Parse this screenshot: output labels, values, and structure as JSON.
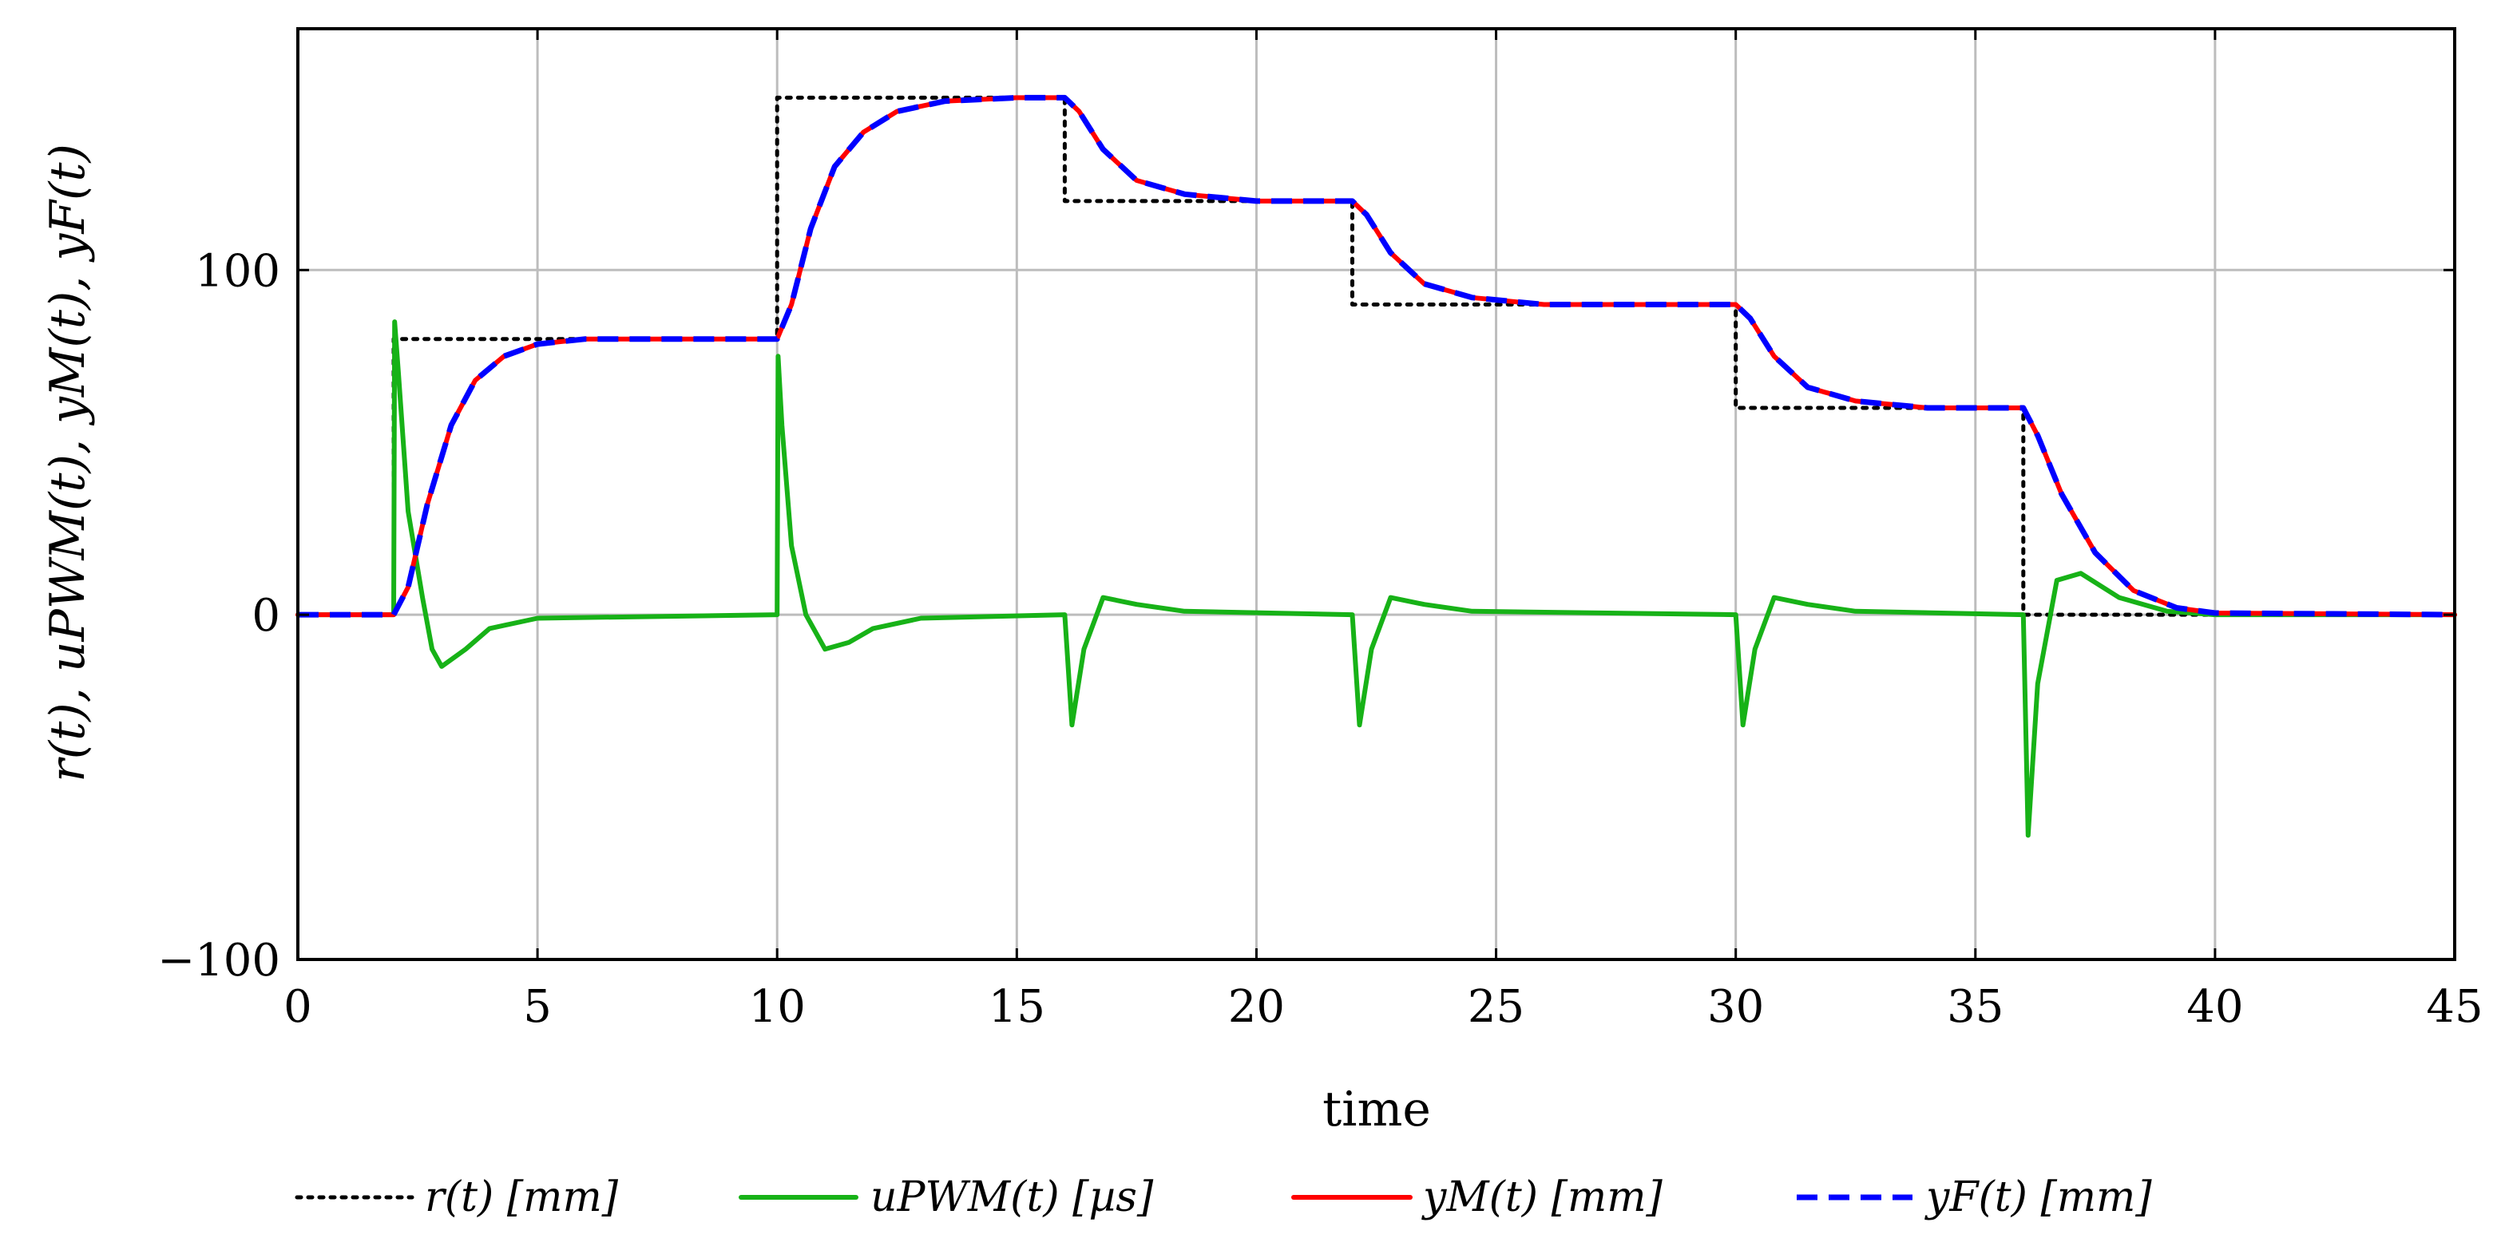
{
  "chart_data": {
    "type": "line",
    "title": "",
    "xlabel": "time",
    "ylabel": "r(t), uPWM(t), yM(t), yF(t)",
    "xlim": [
      0,
      45
    ],
    "ylim": [
      -100,
      170
    ],
    "xticks": [
      0,
      5,
      10,
      15,
      20,
      25,
      30,
      35,
      40,
      45
    ],
    "xtick_labels": [
      "0",
      "5",
      "10",
      "15",
      "20",
      "25",
      "30",
      "35",
      "40",
      "45"
    ],
    "yticks": [
      -100,
      0,
      100
    ],
    "ytick_labels": [
      "−100",
      "0",
      "100"
    ],
    "grid": true,
    "legend_position": "bottom",
    "series": [
      {
        "name": "r(t) [mm]",
        "color": "#000000",
        "style": "dotted",
        "x": [
          0,
          2,
          2,
          10,
          10,
          16,
          16,
          22,
          22,
          30,
          30,
          36,
          36,
          45
        ],
        "y": [
          0,
          0,
          80,
          80,
          150,
          150,
          120,
          120,
          90,
          90,
          60,
          60,
          0,
          0
        ]
      },
      {
        "name": "uPWM(t) [µs]",
        "color": "#17b217",
        "style": "solid",
        "x": [
          0,
          2,
          2.02,
          2.1,
          2.3,
          2.6,
          2.8,
          3.0,
          3.5,
          4.0,
          5.0,
          10,
          10.02,
          10.1,
          10.3,
          10.6,
          11.0,
          11.5,
          12.0,
          13.0,
          16,
          16.15,
          16.4,
          16.8,
          17.5,
          18.5,
          22,
          22.15,
          22.4,
          22.8,
          23.5,
          24.5,
          30,
          30.15,
          30.4,
          30.8,
          31.5,
          32.5,
          36,
          36.1,
          36.3,
          36.7,
          37.2,
          38.0,
          39.0,
          40.0,
          45
        ],
        "y": [
          0,
          0,
          85,
          70,
          30,
          5,
          -10,
          -15,
          -10,
          -4,
          -1,
          0,
          75,
          55,
          20,
          0,
          -10,
          -8,
          -4,
          -1,
          0,
          -32,
          -10,
          5,
          3,
          1,
          0,
          -32,
          -10,
          5,
          3,
          1,
          0,
          -32,
          -10,
          5,
          3,
          1,
          0,
          -64,
          -20,
          10,
          12,
          5,
          1,
          0,
          0
        ]
      },
      {
        "name": "yM(t) [mm]",
        "color": "#ff0000",
        "style": "solid",
        "x": [
          0,
          2,
          2.3,
          2.7,
          3.2,
          3.7,
          4.3,
          5.0,
          6.0,
          10,
          10.3,
          10.7,
          11.2,
          11.8,
          12.5,
          13.5,
          15,
          16,
          16.3,
          16.8,
          17.5,
          18.5,
          20,
          22,
          22.3,
          22.8,
          23.5,
          24.5,
          26,
          30,
          30.3,
          30.8,
          31.5,
          32.5,
          34,
          36,
          36.3,
          36.8,
          37.5,
          38.3,
          39.2,
          40.0,
          45
        ],
        "y": [
          0,
          0,
          8,
          32,
          55,
          68,
          75,
          78.5,
          80,
          80,
          90,
          112,
          130,
          140,
          146,
          149,
          150,
          150,
          146,
          135,
          126,
          122,
          120,
          120,
          116,
          105,
          96,
          92,
          90,
          90,
          86,
          75,
          66,
          62,
          60,
          60,
          52,
          35,
          18,
          7,
          2,
          0.5,
          0
        ]
      },
      {
        "name": "yF(t) [mm]",
        "color": "#0000ff",
        "style": "dashed",
        "x": [
          0,
          2,
          2.3,
          2.7,
          3.2,
          3.7,
          4.3,
          5.0,
          6.0,
          10,
          10.3,
          10.7,
          11.2,
          11.8,
          12.5,
          13.5,
          15,
          16,
          16.3,
          16.8,
          17.5,
          18.5,
          20,
          22,
          22.3,
          22.8,
          23.5,
          24.5,
          26,
          30,
          30.3,
          30.8,
          31.5,
          32.5,
          34,
          36,
          36.3,
          36.8,
          37.5,
          38.3,
          39.2,
          40.0,
          45
        ],
        "y": [
          0,
          0,
          8,
          32,
          55,
          68,
          75,
          78.5,
          80,
          80,
          90,
          112,
          130,
          140,
          146,
          149,
          150,
          150,
          146,
          135,
          126,
          122,
          120,
          120,
          116,
          105,
          96,
          92,
          90,
          90,
          86,
          75,
          66,
          62,
          60,
          60,
          52,
          35,
          18,
          7,
          2,
          0.5,
          0
        ]
      }
    ]
  }
}
